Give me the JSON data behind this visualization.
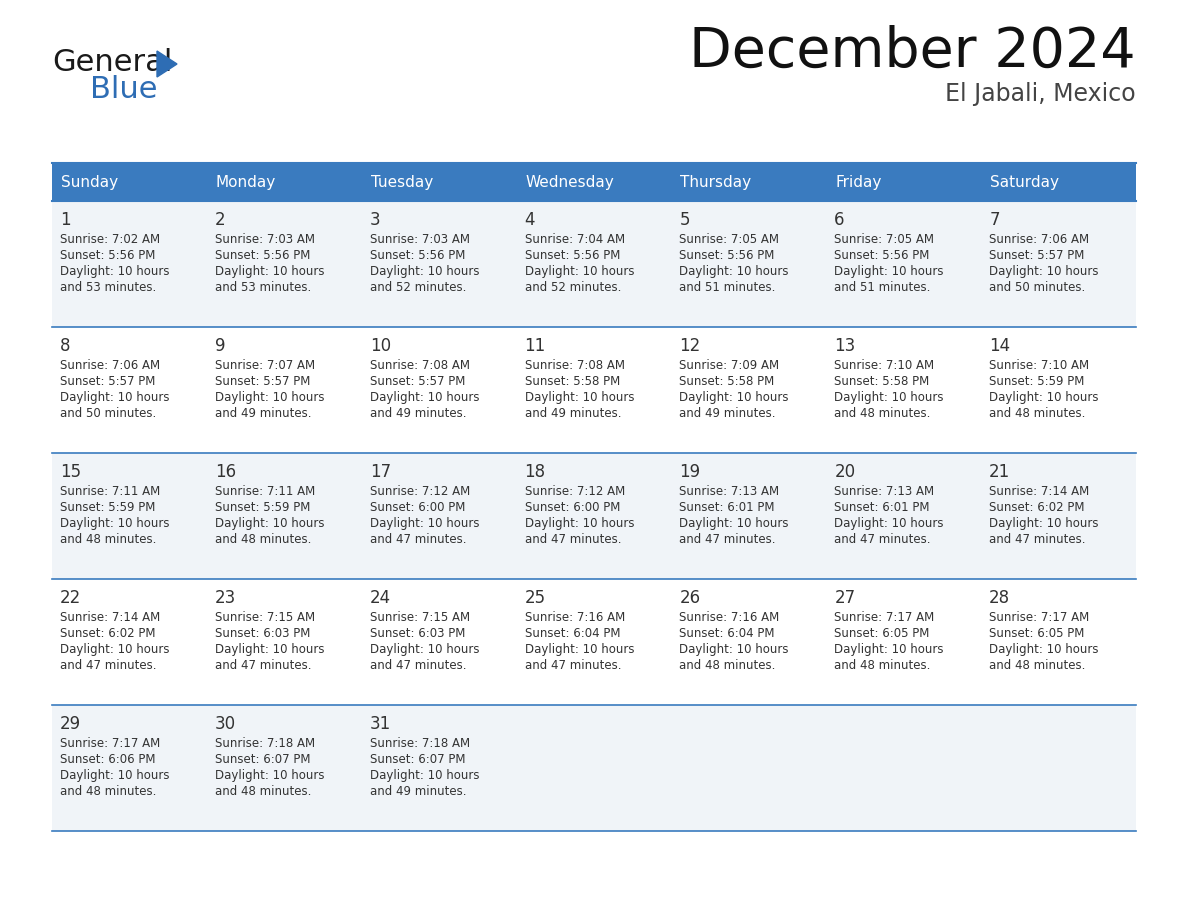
{
  "title": "December 2024",
  "subtitle": "El Jabali, Mexico",
  "header_bg_color": "#3a7bbf",
  "header_text_color": "#ffffff",
  "cell_bg_even": "#f0f4f8",
  "cell_bg_odd": "#ffffff",
  "separator_color": "#3a7bbf",
  "text_color": "#333333",
  "day_names": [
    "Sunday",
    "Monday",
    "Tuesday",
    "Wednesday",
    "Thursday",
    "Friday",
    "Saturday"
  ],
  "days": [
    {
      "day": 1,
      "col": 0,
      "row": 0,
      "sunrise": "7:02 AM",
      "sunset": "5:56 PM",
      "daylight_hours": 10,
      "daylight_minutes": 53
    },
    {
      "day": 2,
      "col": 1,
      "row": 0,
      "sunrise": "7:03 AM",
      "sunset": "5:56 PM",
      "daylight_hours": 10,
      "daylight_minutes": 53
    },
    {
      "day": 3,
      "col": 2,
      "row": 0,
      "sunrise": "7:03 AM",
      "sunset": "5:56 PM",
      "daylight_hours": 10,
      "daylight_minutes": 52
    },
    {
      "day": 4,
      "col": 3,
      "row": 0,
      "sunrise": "7:04 AM",
      "sunset": "5:56 PM",
      "daylight_hours": 10,
      "daylight_minutes": 52
    },
    {
      "day": 5,
      "col": 4,
      "row": 0,
      "sunrise": "7:05 AM",
      "sunset": "5:56 PM",
      "daylight_hours": 10,
      "daylight_minutes": 51
    },
    {
      "day": 6,
      "col": 5,
      "row": 0,
      "sunrise": "7:05 AM",
      "sunset": "5:56 PM",
      "daylight_hours": 10,
      "daylight_minutes": 51
    },
    {
      "day": 7,
      "col": 6,
      "row": 0,
      "sunrise": "7:06 AM",
      "sunset": "5:57 PM",
      "daylight_hours": 10,
      "daylight_minutes": 50
    },
    {
      "day": 8,
      "col": 0,
      "row": 1,
      "sunrise": "7:06 AM",
      "sunset": "5:57 PM",
      "daylight_hours": 10,
      "daylight_minutes": 50
    },
    {
      "day": 9,
      "col": 1,
      "row": 1,
      "sunrise": "7:07 AM",
      "sunset": "5:57 PM",
      "daylight_hours": 10,
      "daylight_minutes": 49
    },
    {
      "day": 10,
      "col": 2,
      "row": 1,
      "sunrise": "7:08 AM",
      "sunset": "5:57 PM",
      "daylight_hours": 10,
      "daylight_minutes": 49
    },
    {
      "day": 11,
      "col": 3,
      "row": 1,
      "sunrise": "7:08 AM",
      "sunset": "5:58 PM",
      "daylight_hours": 10,
      "daylight_minutes": 49
    },
    {
      "day": 12,
      "col": 4,
      "row": 1,
      "sunrise": "7:09 AM",
      "sunset": "5:58 PM",
      "daylight_hours": 10,
      "daylight_minutes": 49
    },
    {
      "day": 13,
      "col": 5,
      "row": 1,
      "sunrise": "7:10 AM",
      "sunset": "5:58 PM",
      "daylight_hours": 10,
      "daylight_minutes": 48
    },
    {
      "day": 14,
      "col": 6,
      "row": 1,
      "sunrise": "7:10 AM",
      "sunset": "5:59 PM",
      "daylight_hours": 10,
      "daylight_minutes": 48
    },
    {
      "day": 15,
      "col": 0,
      "row": 2,
      "sunrise": "7:11 AM",
      "sunset": "5:59 PM",
      "daylight_hours": 10,
      "daylight_minutes": 48
    },
    {
      "day": 16,
      "col": 1,
      "row": 2,
      "sunrise": "7:11 AM",
      "sunset": "5:59 PM",
      "daylight_hours": 10,
      "daylight_minutes": 48
    },
    {
      "day": 17,
      "col": 2,
      "row": 2,
      "sunrise": "7:12 AM",
      "sunset": "6:00 PM",
      "daylight_hours": 10,
      "daylight_minutes": 47
    },
    {
      "day": 18,
      "col": 3,
      "row": 2,
      "sunrise": "7:12 AM",
      "sunset": "6:00 PM",
      "daylight_hours": 10,
      "daylight_minutes": 47
    },
    {
      "day": 19,
      "col": 4,
      "row": 2,
      "sunrise": "7:13 AM",
      "sunset": "6:01 PM",
      "daylight_hours": 10,
      "daylight_minutes": 47
    },
    {
      "day": 20,
      "col": 5,
      "row": 2,
      "sunrise": "7:13 AM",
      "sunset": "6:01 PM",
      "daylight_hours": 10,
      "daylight_minutes": 47
    },
    {
      "day": 21,
      "col": 6,
      "row": 2,
      "sunrise": "7:14 AM",
      "sunset": "6:02 PM",
      "daylight_hours": 10,
      "daylight_minutes": 47
    },
    {
      "day": 22,
      "col": 0,
      "row": 3,
      "sunrise": "7:14 AM",
      "sunset": "6:02 PM",
      "daylight_hours": 10,
      "daylight_minutes": 47
    },
    {
      "day": 23,
      "col": 1,
      "row": 3,
      "sunrise": "7:15 AM",
      "sunset": "6:03 PM",
      "daylight_hours": 10,
      "daylight_minutes": 47
    },
    {
      "day": 24,
      "col": 2,
      "row": 3,
      "sunrise": "7:15 AM",
      "sunset": "6:03 PM",
      "daylight_hours": 10,
      "daylight_minutes": 47
    },
    {
      "day": 25,
      "col": 3,
      "row": 3,
      "sunrise": "7:16 AM",
      "sunset": "6:04 PM",
      "daylight_hours": 10,
      "daylight_minutes": 47
    },
    {
      "day": 26,
      "col": 4,
      "row": 3,
      "sunrise": "7:16 AM",
      "sunset": "6:04 PM",
      "daylight_hours": 10,
      "daylight_minutes": 48
    },
    {
      "day": 27,
      "col": 5,
      "row": 3,
      "sunrise": "7:17 AM",
      "sunset": "6:05 PM",
      "daylight_hours": 10,
      "daylight_minutes": 48
    },
    {
      "day": 28,
      "col": 6,
      "row": 3,
      "sunrise": "7:17 AM",
      "sunset": "6:05 PM",
      "daylight_hours": 10,
      "daylight_minutes": 48
    },
    {
      "day": 29,
      "col": 0,
      "row": 4,
      "sunrise": "7:17 AM",
      "sunset": "6:06 PM",
      "daylight_hours": 10,
      "daylight_minutes": 48
    },
    {
      "day": 30,
      "col": 1,
      "row": 4,
      "sunrise": "7:18 AM",
      "sunset": "6:07 PM",
      "daylight_hours": 10,
      "daylight_minutes": 48
    },
    {
      "day": 31,
      "col": 2,
      "row": 4,
      "sunrise": "7:18 AM",
      "sunset": "6:07 PM",
      "daylight_hours": 10,
      "daylight_minutes": 49
    }
  ],
  "logo_color_general": "#1a1a1a",
  "logo_color_blue": "#2e6db4",
  "logo_triangle_color": "#2e6db4",
  "fig_width": 11.88,
  "fig_height": 9.18,
  "dpi": 100
}
